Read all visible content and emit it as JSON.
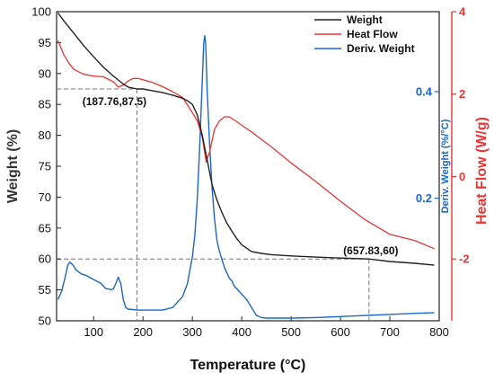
{
  "chart_data": {
    "type": "line",
    "xlabel": "Temperature (°C)",
    "ylabel_left": "Weight (%)",
    "ylabel_right_inner": "Deriv. Weight (%/°C)",
    "ylabel_right_outer": "Heat Flow (W/g)",
    "xlim": [
      25,
      800
    ],
    "x_ticks": [
      100,
      200,
      300,
      400,
      500,
      600,
      700,
      800
    ],
    "ylim_weight": [
      50,
      100
    ],
    "y_ticks_weight": [
      50,
      55,
      60,
      65,
      70,
      75,
      80,
      85,
      90,
      95,
      100
    ],
    "ylim_deriv": [
      -0.03,
      0.55
    ],
    "y_ticks_deriv": [
      0.2,
      0.4
    ],
    "ylim_heatflow": [
      -3.5,
      4
    ],
    "y_ticks_heatflow": [
      -2,
      0,
      2,
      4
    ],
    "grid": false,
    "legend_position": "top-right",
    "colors": {
      "weight": "#222222",
      "heat_flow": "#ee3333",
      "deriv": "#1a66cc",
      "guide": "#777777"
    },
    "series": [
      {
        "key": "weight",
        "name": "Weight",
        "axis": "weight",
        "x": [
          28,
          40,
          60,
          80,
          100,
          120,
          140,
          160,
          170,
          187.76,
          200,
          220,
          240,
          260,
          280,
          290,
          300,
          310,
          320,
          330,
          340,
          350,
          360,
          370,
          380,
          390,
          400,
          420,
          440,
          460,
          500,
          550,
          600,
          657.83,
          700,
          750,
          790
        ],
        "y": [
          99.8,
          98.5,
          96.5,
          94.5,
          92.7,
          91.0,
          89.6,
          88.3,
          87.8,
          87.5,
          87.5,
          87.2,
          86.9,
          86.5,
          86.0,
          85.6,
          85.0,
          83.3,
          80.0,
          76.0,
          72.0,
          69.5,
          67.5,
          65.8,
          64.5,
          63.3,
          62.3,
          61.2,
          60.9,
          60.7,
          60.5,
          60.3,
          60.15,
          60.0,
          59.6,
          59.3,
          59.0
        ]
      },
      {
        "key": "heat_flow",
        "name": "Heat Flow",
        "axis": "heatflow",
        "x": [
          28,
          40,
          50,
          60,
          80,
          100,
          120,
          140,
          150,
          160,
          170,
          180,
          190,
          200,
          220,
          240,
          260,
          280,
          300,
          310,
          320,
          328,
          335,
          345,
          355,
          365,
          375,
          390,
          420,
          460,
          500,
          550,
          600,
          650,
          700,
          750,
          790
        ],
        "y": [
          3.3,
          2.95,
          2.75,
          2.6,
          2.48,
          2.44,
          2.42,
          2.3,
          2.17,
          2.22,
          2.32,
          2.38,
          2.38,
          2.35,
          2.28,
          2.18,
          2.06,
          1.92,
          1.55,
          1.35,
          0.95,
          0.35,
          0.6,
          1.15,
          1.35,
          1.45,
          1.45,
          1.33,
          1.08,
          0.72,
          0.33,
          -0.12,
          -0.6,
          -1.05,
          -1.4,
          -1.55,
          -1.75
        ]
      },
      {
        "key": "deriv",
        "name": "Deriv. Weight",
        "axis": "deriv",
        "x": [
          28,
          35,
          42,
          48,
          52,
          58,
          65,
          75,
          85,
          95,
          105,
          115,
          125,
          130,
          135,
          140,
          145,
          150,
          155,
          160,
          165,
          170,
          180,
          190,
          200,
          220,
          240,
          260,
          270,
          280,
          290,
          300,
          305,
          310,
          315,
          320,
          323,
          325,
          327,
          330,
          335,
          340,
          345,
          350,
          355,
          360,
          365,
          370,
          375,
          380,
          385,
          390,
          400,
          410,
          420,
          430,
          440,
          450,
          500,
          550,
          600,
          650,
          700,
          750,
          790
        ],
        "y": [
          0.01,
          0.025,
          0.05,
          0.075,
          0.08,
          0.075,
          0.065,
          0.058,
          0.055,
          0.05,
          0.045,
          0.04,
          0.03,
          0.03,
          0.028,
          0.03,
          0.04,
          0.052,
          0.04,
          0.01,
          -0.005,
          -0.008,
          -0.009,
          -0.01,
          -0.01,
          -0.01,
          -0.01,
          -0.005,
          0.005,
          0.015,
          0.04,
          0.09,
          0.13,
          0.2,
          0.3,
          0.42,
          0.49,
          0.505,
          0.49,
          0.4,
          0.3,
          0.22,
          0.16,
          0.12,
          0.1,
          0.085,
          0.07,
          0.06,
          0.05,
          0.045,
          0.035,
          0.03,
          0.02,
          0.01,
          -0.005,
          -0.02,
          -0.024,
          -0.025,
          -0.025,
          -0.024,
          -0.022,
          -0.02,
          -0.018,
          -0.016,
          -0.015
        ]
      }
    ],
    "annotations": [
      {
        "label": "(187.76,87.5)",
        "x": 187.76,
        "y": 87.5
      },
      {
        "label": "(657.83,60)",
        "x": 657.83,
        "y": 60
      }
    ]
  }
}
